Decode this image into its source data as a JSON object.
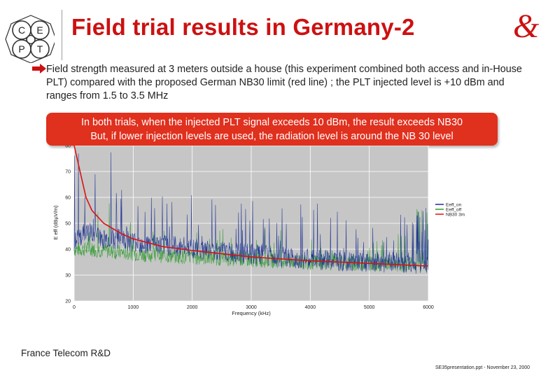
{
  "logo": {
    "letters": [
      "C",
      "E",
      "P",
      "T"
    ]
  },
  "title": "Field trial results in Germany-2",
  "bullet": "Field strength measured at 3 meters outside a house (this experiment combined both access and in-House PLT) compared with the proposed German NB30 limit (red line) ; the PLT injected level is +10 dBm and ranges from 1.5 to 3.5 MHz",
  "callout": {
    "line1": "In both trials, when the injected PLT signal exceeds 10 dBm, the result exceeds NB30",
    "line2": "But, if lower injection levels are used, the radiation level is around the NB 30 level"
  },
  "colors": {
    "title": "#cc1111",
    "callout": "#e0301e",
    "on": "#1a2f8f",
    "off": "#2f9a2f",
    "limit": "#dd1111",
    "plot_bg": "#c6c6c6"
  },
  "chart_data": {
    "type": "line",
    "xlabel": "Frequency (kHz)",
    "ylabel": "E eff (dBµV/m)",
    "xlim": [
      0,
      6000
    ],
    "ylim": [
      20,
      80
    ],
    "x_ticks": [
      "0",
      "1000",
      "2000",
      "3000",
      "4000",
      "5000",
      "6000"
    ],
    "y_ticks": [
      "20",
      "30",
      "40",
      "50",
      "60",
      "70",
      "80"
    ],
    "grid": true,
    "legend_position": "right",
    "series": [
      {
        "name": "Eeff_on",
        "color": "#1a2f8f",
        "values": [
          [
            0,
            42
          ],
          [
            200,
            47
          ],
          [
            500,
            44
          ],
          [
            800,
            44
          ],
          [
            1200,
            42
          ],
          [
            1800,
            41
          ],
          [
            2500,
            39
          ],
          [
            3000,
            38
          ],
          [
            3500,
            37
          ],
          [
            4000,
            36
          ],
          [
            4500,
            35.5
          ],
          [
            5000,
            35
          ],
          [
            5500,
            35
          ],
          [
            6000,
            34
          ]
        ]
      },
      {
        "name": "Eeff_off",
        "color": "#2f9a2f",
        "values": [
          [
            0,
            40
          ],
          [
            300,
            40
          ],
          [
            700,
            39
          ],
          [
            1200,
            38
          ],
          [
            2000,
            37
          ],
          [
            3000,
            36
          ],
          [
            4000,
            35
          ],
          [
            5000,
            34.5
          ],
          [
            6000,
            34
          ]
        ]
      },
      {
        "name": "NB30 3m",
        "color": "#dd1111",
        "values": [
          [
            0,
            80
          ],
          [
            100,
            70
          ],
          [
            200,
            60
          ],
          [
            300,
            55
          ],
          [
            500,
            50
          ],
          [
            800,
            46
          ],
          [
            1000,
            44
          ],
          [
            1500,
            41
          ],
          [
            2000,
            39.5
          ],
          [
            3000,
            37
          ],
          [
            4000,
            35.5
          ],
          [
            5000,
            34.5
          ],
          [
            6000,
            33.5
          ]
        ]
      }
    ]
  },
  "footer_left": "France Telecom R&D",
  "footer_right": "SE35presentation.ppt - November 23, 2000"
}
